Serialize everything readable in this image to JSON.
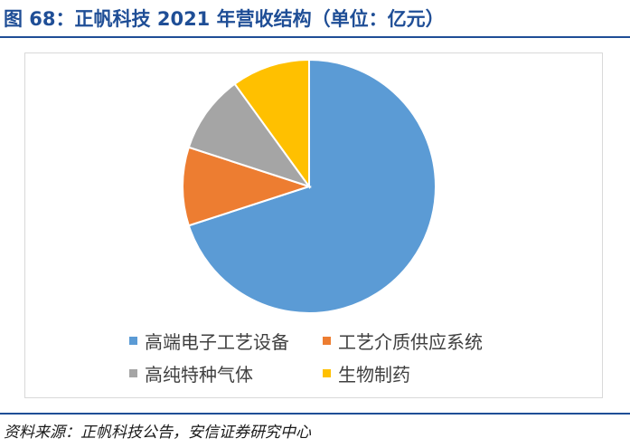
{
  "header": {
    "title": "图 68：正帆科技 2021 年营收结构（单位：亿元）"
  },
  "footer": {
    "source": "资料来源：正帆科技公告，安信证券研究中心"
  },
  "chart_data": {
    "type": "pie",
    "title": "",
    "categories": [
      "高端电子工艺设备",
      "工艺介质供应系统",
      "高纯特种气体",
      "生物制药"
    ],
    "values": [
      70,
      10,
      10,
      10
    ],
    "colors": [
      "#5b9bd5",
      "#ed7d31",
      "#a5a5a5",
      "#ffc000"
    ],
    "start_angle_deg": 0,
    "direction": "clockwise",
    "legend_position": "bottom"
  }
}
